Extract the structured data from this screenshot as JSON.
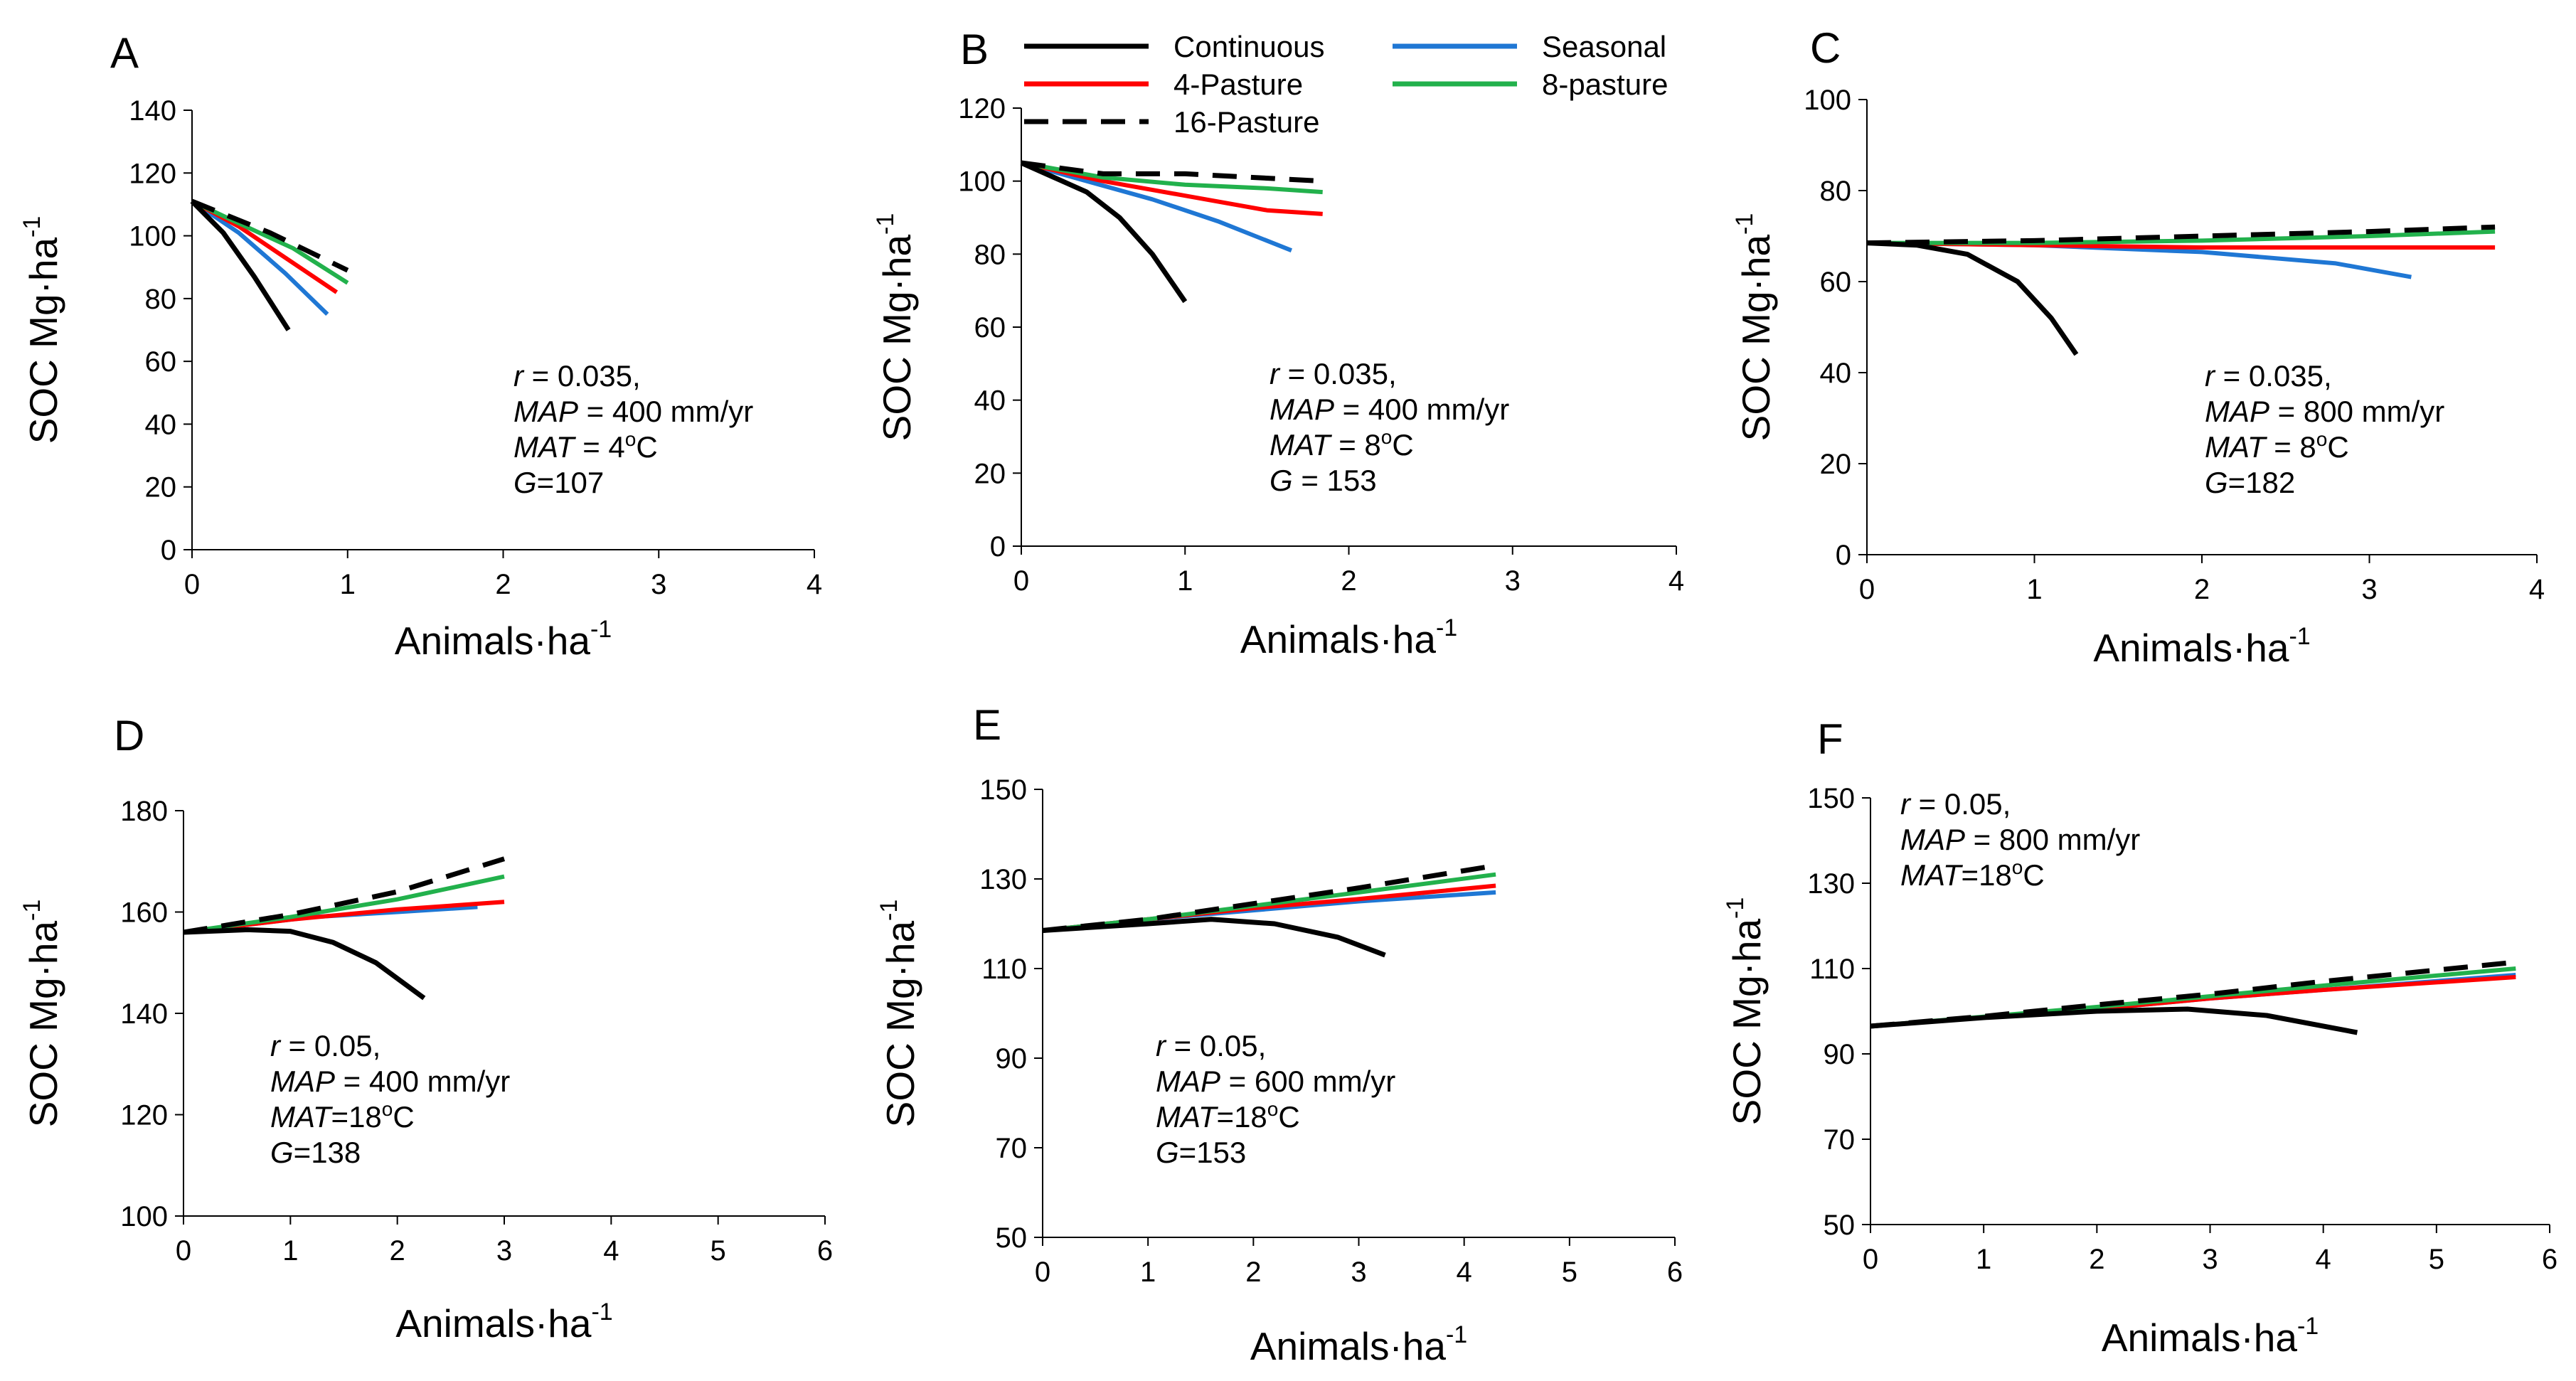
{
  "legend": [
    {
      "name": "Continuous",
      "color": "#000000",
      "dash": false
    },
    {
      "name": "Seasonal",
      "color": "#1f77d4",
      "dash": false
    },
    {
      "name": "4-Pasture",
      "color": "#ff0000",
      "dash": false
    },
    {
      "name": "8-pasture",
      "color": "#22b14c",
      "dash": false
    },
    {
      "name": "16-Pasture",
      "color": "#000000",
      "dash": true
    }
  ],
  "chart_data": [
    {
      "panel": "A",
      "type": "line",
      "xlabel": "Animals·ha",
      "xlabel_sup": "-1",
      "ylabel": "SOC Mg·ha",
      "ylabel_sup": "-1",
      "xlim": [
        0,
        4
      ],
      "ylim": [
        0,
        140
      ],
      "xticks": [
        0,
        1,
        2,
        3,
        4
      ],
      "yticks": [
        0,
        20,
        40,
        60,
        80,
        100,
        120,
        140
      ],
      "annotation": [
        {
          "it": "r",
          "txt": " = 0.035,"
        },
        {
          "it": "MAP",
          "txt": " = 400 mm/yr"
        },
        {
          "it": "MAT",
          "txt": " = 4",
          "sup": "o",
          "after": "C"
        },
        {
          "it": "G",
          "txt": "=107"
        }
      ],
      "series": [
        {
          "name": "Continuous",
          "points": [
            [
              0,
              111
            ],
            [
              0.2,
              101
            ],
            [
              0.4,
              87
            ],
            [
              0.62,
              70
            ]
          ]
        },
        {
          "name": "Seasonal",
          "points": [
            [
              0,
              111
            ],
            [
              0.3,
              101
            ],
            [
              0.6,
              88
            ],
            [
              0.87,
              75
            ]
          ]
        },
        {
          "name": "4-Pasture",
          "points": [
            [
              0,
              111
            ],
            [
              0.3,
              103
            ],
            [
              0.6,
              93
            ],
            [
              0.93,
              82
            ]
          ]
        },
        {
          "name": "8-pasture",
          "points": [
            [
              0,
              111
            ],
            [
              0.3,
              104
            ],
            [
              0.65,
              96
            ],
            [
              1.0,
              85
            ]
          ]
        },
        {
          "name": "16-Pasture",
          "points": [
            [
              0,
              111
            ],
            [
              0.5,
              101
            ],
            [
              1.0,
              89
            ]
          ]
        }
      ]
    },
    {
      "panel": "B",
      "type": "line",
      "xlabel": "Animals·ha",
      "xlabel_sup": "-1",
      "ylabel": "SOC Mg·ha",
      "ylabel_sup": "-1",
      "xlim": [
        0,
        4
      ],
      "ylim": [
        0,
        120
      ],
      "xticks": [
        0,
        1,
        2,
        3,
        4
      ],
      "yticks": [
        0,
        20,
        40,
        60,
        80,
        100,
        120
      ],
      "annotation": [
        {
          "it": "r",
          "txt": " = 0.035,"
        },
        {
          "it": "MAP",
          "txt": " = 400 mm/yr"
        },
        {
          "it": "MAT",
          "txt": " = 8",
          "sup": "o",
          "after": "C"
        },
        {
          "it": "G",
          "txt": " = 153"
        }
      ],
      "series": [
        {
          "name": "Continuous",
          "points": [
            [
              0,
              105
            ],
            [
              0.2,
              101
            ],
            [
              0.4,
              97
            ],
            [
              0.6,
              90
            ],
            [
              0.8,
              80
            ],
            [
              1.0,
              67
            ]
          ]
        },
        {
          "name": "Seasonal",
          "points": [
            [
              0,
              105
            ],
            [
              0.4,
              100
            ],
            [
              0.8,
              95
            ],
            [
              1.2,
              89
            ],
            [
              1.65,
              81
            ]
          ]
        },
        {
          "name": "4-Pasture",
          "points": [
            [
              0,
              105
            ],
            [
              0.5,
              100
            ],
            [
              1.0,
              96
            ],
            [
              1.5,
              92
            ],
            [
              1.84,
              91
            ]
          ]
        },
        {
          "name": "8-pasture",
          "points": [
            [
              0,
              105
            ],
            [
              0.5,
              101
            ],
            [
              1.0,
              99
            ],
            [
              1.5,
              98
            ],
            [
              1.84,
              97
            ]
          ]
        },
        {
          "name": "16-Pasture",
          "points": [
            [
              0,
              105
            ],
            [
              0.5,
              102
            ],
            [
              1.0,
              102
            ],
            [
              1.84,
              100
            ]
          ]
        }
      ]
    },
    {
      "panel": "C",
      "type": "line",
      "xlabel": "Animals·ha",
      "xlabel_sup": "-1",
      "ylabel": "SOC Mg·ha",
      "ylabel_sup": "-1",
      "xlim": [
        0,
        4
      ],
      "ylim": [
        0,
        100
      ],
      "xticks": [
        0,
        1,
        2,
        3,
        4
      ],
      "yticks": [
        0,
        20,
        40,
        60,
        80,
        100
      ],
      "annotation": [
        {
          "it": "r",
          "txt": " = 0.035,"
        },
        {
          "it": "MAP",
          "txt": " = 800 mm/yr"
        },
        {
          "it": "MAT",
          "txt": " = 8",
          "sup": "o",
          "after": "C"
        },
        {
          "it": "G",
          "txt": "=182"
        }
      ],
      "series": [
        {
          "name": "Continuous",
          "points": [
            [
              0,
              68.5
            ],
            [
              0.3,
              68
            ],
            [
              0.6,
              66
            ],
            [
              0.9,
              60
            ],
            [
              1.1,
              52
            ],
            [
              1.25,
              44
            ]
          ]
        },
        {
          "name": "Seasonal",
          "points": [
            [
              0,
              68.5
            ],
            [
              1.0,
              68
            ],
            [
              2.0,
              66.5
            ],
            [
              2.8,
              64
            ],
            [
              3.25,
              61
            ]
          ]
        },
        {
          "name": "4-Pasture",
          "points": [
            [
              0,
              68.5
            ],
            [
              1.0,
              68
            ],
            [
              2.0,
              67.5
            ],
            [
              3.0,
              67.5
            ],
            [
              3.75,
              67.5
            ]
          ]
        },
        {
          "name": "8-pasture",
          "points": [
            [
              0,
              68.5
            ],
            [
              1.0,
              68.5
            ],
            [
              2.0,
              69
            ],
            [
              3.0,
              70
            ],
            [
              3.75,
              71
            ]
          ]
        },
        {
          "name": "16-Pasture",
          "points": [
            [
              0,
              68.5
            ],
            [
              1.0,
              69
            ],
            [
              2.0,
              70
            ],
            [
              3.0,
              71
            ],
            [
              3.75,
              72
            ]
          ]
        }
      ]
    },
    {
      "panel": "D",
      "type": "line",
      "xlabel": "Animals·ha",
      "xlabel_sup": "-1",
      "ylabel": "SOC Mg·ha",
      "ylabel_sup": "-1",
      "xlim": [
        0,
        6
      ],
      "ylim": [
        100,
        180
      ],
      "xticks": [
        0,
        1,
        2,
        3,
        4,
        5,
        6
      ],
      "yticks": [
        100,
        120,
        140,
        160,
        180
      ],
      "annotation": [
        {
          "it": "r",
          "txt": " = 0.05,"
        },
        {
          "it": "MAP",
          "txt": " = 400 mm/yr"
        },
        {
          "it": "MAT",
          "txt": "=18",
          "sup": "o",
          "after": "C"
        },
        {
          "it": "G",
          "txt": "=138"
        }
      ],
      "series": [
        {
          "name": "Continuous",
          "points": [
            [
              0,
              156
            ],
            [
              0.6,
              156.5
            ],
            [
              1.0,
              156.2
            ],
            [
              1.4,
              154
            ],
            [
              1.8,
              150
            ],
            [
              2.25,
              143
            ]
          ]
        },
        {
          "name": "Seasonal",
          "points": [
            [
              0,
              156
            ],
            [
              0.6,
              157.5
            ],
            [
              1.2,
              159
            ],
            [
              2.0,
              160
            ],
            [
              2.75,
              161
            ]
          ]
        },
        {
          "name": "4-Pasture",
          "points": [
            [
              0,
              156
            ],
            [
              1.0,
              158.5
            ],
            [
              2.0,
              160.5
            ],
            [
              3.0,
              162
            ]
          ]
        },
        {
          "name": "8-pasture",
          "points": [
            [
              0,
              156
            ],
            [
              1.0,
              159
            ],
            [
              2.0,
              162.5
            ],
            [
              3.0,
              167
            ]
          ]
        },
        {
          "name": "16-Pasture",
          "points": [
            [
              0,
              156
            ],
            [
              1.0,
              159.5
            ],
            [
              2.0,
              164
            ],
            [
              3.0,
              170.5
            ]
          ]
        }
      ]
    },
    {
      "panel": "E",
      "type": "line",
      "xlabel": "Animals·ha",
      "xlabel_sup": "-1",
      "ylabel": "SOC Mg·ha",
      "ylabel_sup": "-1",
      "xlim": [
        0,
        6
      ],
      "ylim": [
        50,
        150
      ],
      "xticks": [
        0,
        1,
        2,
        3,
        4,
        5,
        6
      ],
      "yticks": [
        50,
        70,
        90,
        110,
        130,
        150
      ],
      "annotation": [
        {
          "it": "r",
          "txt": " = 0.05,"
        },
        {
          "it": "MAP",
          "txt": " = 600 mm/yr"
        },
        {
          "it": "MAT",
          "txt": "=18",
          "sup": "o",
          "after": "C"
        },
        {
          "it": "G",
          "txt": "=153"
        }
      ],
      "series": [
        {
          "name": "Continuous",
          "points": [
            [
              0,
              118.5
            ],
            [
              1.0,
              120
            ],
            [
              1.6,
              121
            ],
            [
              2.2,
              120
            ],
            [
              2.8,
              117
            ],
            [
              3.25,
              113
            ]
          ]
        },
        {
          "name": "Seasonal",
          "points": [
            [
              0,
              118.5
            ],
            [
              1.0,
              121
            ],
            [
              2.0,
              123
            ],
            [
              3.0,
              125
            ],
            [
              4.3,
              127
            ]
          ]
        },
        {
          "name": "4-Pasture",
          "points": [
            [
              0,
              118.5
            ],
            [
              1.0,
              121
            ],
            [
              2.0,
              123.5
            ],
            [
              3.0,
              125.5
            ],
            [
              4.3,
              128.5
            ]
          ]
        },
        {
          "name": "8-pasture",
          "points": [
            [
              0,
              118.5
            ],
            [
              1.0,
              121
            ],
            [
              2.0,
              124
            ],
            [
              3.0,
              127
            ],
            [
              4.3,
              131
            ]
          ]
        },
        {
          "name": "16-Pasture",
          "points": [
            [
              0,
              118.5
            ],
            [
              1.0,
              121
            ],
            [
              2.0,
              124.5
            ],
            [
              3.0,
              128
            ],
            [
              4.3,
              133
            ]
          ]
        }
      ]
    },
    {
      "panel": "F",
      "type": "line",
      "xlabel": "Animals·ha",
      "xlabel_sup": "-1",
      "ylabel": "SOC Mg·ha",
      "ylabel_sup": "-1",
      "xlim": [
        0,
        6
      ],
      "ylim": [
        50,
        150
      ],
      "xticks": [
        0,
        1,
        2,
        3,
        4,
        5,
        6
      ],
      "yticks": [
        50,
        70,
        90,
        110,
        130,
        150
      ],
      "annotation": [
        {
          "it": "r",
          "txt": " = 0.05,"
        },
        {
          "it": "MAP",
          "txt": " = 800 mm/yr"
        },
        {
          "it": "MAT",
          "txt": "=18",
          "sup": "o",
          "after": "C"
        }
      ],
      "series": [
        {
          "name": "Continuous",
          "points": [
            [
              0,
              96.5
            ],
            [
              1.0,
              98.5
            ],
            [
              2.0,
              100
            ],
            [
              2.8,
              100.5
            ],
            [
              3.5,
              99
            ],
            [
              4.3,
              95
            ]
          ]
        },
        {
          "name": "Seasonal",
          "points": [
            [
              0,
              96.5
            ],
            [
              1.0,
              98.5
            ],
            [
              2.0,
              100.5
            ],
            [
              3.0,
              103
            ],
            [
              4.0,
              105
            ],
            [
              5.7,
              108.5
            ]
          ]
        },
        {
          "name": "4-Pasture",
          "points": [
            [
              0,
              96.5
            ],
            [
              1.0,
              98.5
            ],
            [
              2.0,
              100.5
            ],
            [
              3.0,
              103
            ],
            [
              4.0,
              105
            ],
            [
              5.7,
              108
            ]
          ]
        },
        {
          "name": "8-pasture",
          "points": [
            [
              0,
              96.5
            ],
            [
              1.0,
              98.7
            ],
            [
              2.0,
              101
            ],
            [
              3.0,
              103.5
            ],
            [
              4.0,
              106
            ],
            [
              5.7,
              110
            ]
          ]
        },
        {
          "name": "16-Pasture",
          "points": [
            [
              0,
              96.5
            ],
            [
              1.0,
              98.8
            ],
            [
              2.0,
              101.5
            ],
            [
              3.0,
              104
            ],
            [
              4.0,
              107
            ],
            [
              5.7,
              111.5
            ]
          ]
        }
      ]
    }
  ]
}
